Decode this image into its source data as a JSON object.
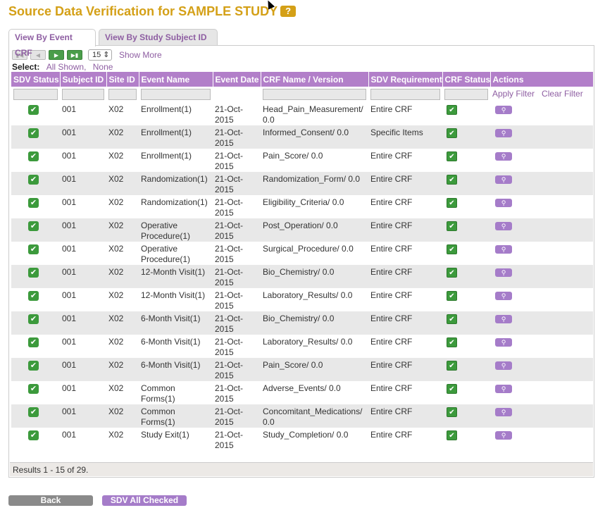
{
  "title": "Source Data Verification for SAMPLE STUDY",
  "help_icon": "?",
  "tabs": [
    "View By Event CRF",
    "View By Study Subject ID"
  ],
  "toolbar": {
    "page_size": "15",
    "show_more": "Show More"
  },
  "select": {
    "label": "Select:",
    "all": "All Shown,",
    "none": "None"
  },
  "columns": [
    "SDV Status",
    "Subject ID",
    "Site ID",
    "Event Name",
    "Event Date",
    "CRF Name / Version",
    "SDV Requirement",
    "CRF Status",
    "Actions"
  ],
  "filter": {
    "apply": "Apply Filter",
    "clear": "Clear Filter"
  },
  "rows": [
    {
      "subject": "001",
      "site": "X02",
      "event": "Enrollment(1)",
      "date": "21-Oct-2015",
      "crf": "Head_Pain_Measurement/ 0.0",
      "req": "Entire CRF"
    },
    {
      "subject": "001",
      "site": "X02",
      "event": "Enrollment(1)",
      "date": "21-Oct-2015",
      "crf": "Informed_Consent/ 0.0",
      "req": "Specific Items"
    },
    {
      "subject": "001",
      "site": "X02",
      "event": "Enrollment(1)",
      "date": "21-Oct-2015",
      "crf": "Pain_Score/ 0.0",
      "req": "Entire CRF"
    },
    {
      "subject": "001",
      "site": "X02",
      "event": "Randomization(1)",
      "date": "21-Oct-2015",
      "crf": "Randomization_Form/ 0.0",
      "req": "Entire CRF"
    },
    {
      "subject": "001",
      "site": "X02",
      "event": "Randomization(1)",
      "date": "21-Oct-2015",
      "crf": "Eligibility_Criteria/ 0.0",
      "req": "Entire CRF"
    },
    {
      "subject": "001",
      "site": "X02",
      "event": "Operative Procedure(1)",
      "date": "21-Oct-2015",
      "crf": "Post_Operation/ 0.0",
      "req": "Entire CRF"
    },
    {
      "subject": "001",
      "site": "X02",
      "event": "Operative Procedure(1)",
      "date": "21-Oct-2015",
      "crf": "Surgical_Procedure/ 0.0",
      "req": "Entire CRF"
    },
    {
      "subject": "001",
      "site": "X02",
      "event": "12-Month Visit(1)",
      "date": "21-Oct-2015",
      "crf": "Bio_Chemistry/ 0.0",
      "req": "Entire CRF"
    },
    {
      "subject": "001",
      "site": "X02",
      "event": "12-Month Visit(1)",
      "date": "21-Oct-2015",
      "crf": "Laboratory_Results/ 0.0",
      "req": "Entire CRF"
    },
    {
      "subject": "001",
      "site": "X02",
      "event": "6-Month Visit(1)",
      "date": "21-Oct-2015",
      "crf": "Bio_Chemistry/ 0.0",
      "req": "Entire CRF"
    },
    {
      "subject": "001",
      "site": "X02",
      "event": "6-Month Visit(1)",
      "date": "21-Oct-2015",
      "crf": "Laboratory_Results/ 0.0",
      "req": "Entire CRF"
    },
    {
      "subject": "001",
      "site": "X02",
      "event": "6-Month Visit(1)",
      "date": "21-Oct-2015",
      "crf": "Pain_Score/ 0.0",
      "req": "Entire CRF"
    },
    {
      "subject": "001",
      "site": "X02",
      "event": "Common Forms(1)",
      "date": "21-Oct-2015",
      "crf": "Adverse_Events/ 0.0",
      "req": "Entire CRF"
    },
    {
      "subject": "001",
      "site": "X02",
      "event": "Common Forms(1)",
      "date": "21-Oct-2015",
      "crf": "Concomitant_Medications/ 0.0",
      "req": "Entire CRF"
    },
    {
      "subject": "001",
      "site": "X02",
      "event": "Study Exit(1)",
      "date": "21-Oct-2015",
      "crf": "Study_Completion/ 0.0",
      "req": "Entire CRF"
    }
  ],
  "results": "Results 1 - 15 of 29.",
  "buttons": {
    "back": "Back",
    "sdv_all": "SDV All Checked"
  },
  "colors": {
    "title": "#d4a017",
    "header": "#b27fc9",
    "accent": "#8e5ea2",
    "check": "#3c9a3c"
  }
}
